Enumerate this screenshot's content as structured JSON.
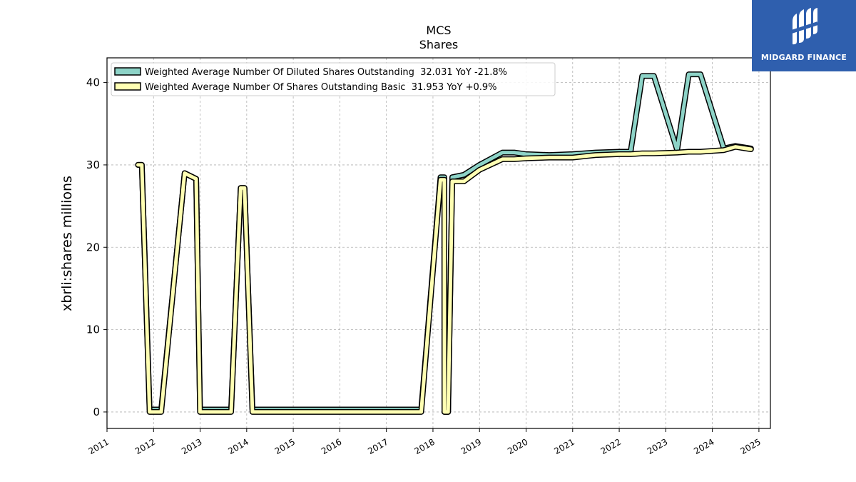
{
  "logo": {
    "text": "MIDGARD FINANCE",
    "bg_color": "#2f5fae"
  },
  "chart_data": {
    "type": "line",
    "title": "MCS",
    "subtitle": "Shares",
    "ylabel": "xbrli:shares millions",
    "xlabel": "",
    "xlim": [
      "2011-01-01",
      "2025-04-01"
    ],
    "ylim": [
      -2,
      43
    ],
    "yticks": [
      0,
      10,
      20,
      30,
      40
    ],
    "xticks": [
      "2011",
      "2012",
      "2013",
      "2014",
      "2015",
      "2016",
      "2017",
      "2018",
      "2019",
      "2020",
      "2021",
      "2022",
      "2023",
      "2024",
      "2025"
    ],
    "grid": true,
    "legend_position": "top-left",
    "series": [
      {
        "name": "Weighted Average Number Of Diluted Shares Outstanding  32.031 YoY -21.8%",
        "color": "#8dd3c7",
        "points": [
          [
            "2011-09-01",
            30.0
          ],
          [
            "2011-10-01",
            30.0
          ],
          [
            "2011-12-01",
            0.3
          ],
          [
            "2012-03-01",
            0.3
          ],
          [
            "2012-09-01",
            29.0
          ],
          [
            "2012-12-01",
            28.3
          ],
          [
            "2012-12-31",
            0.3
          ],
          [
            "2013-09-01",
            0.3
          ],
          [
            "2013-11-15",
            27.2
          ],
          [
            "2013-12-15",
            27.2
          ],
          [
            "2014-02-15",
            0.3
          ],
          [
            "2017-10-01",
            0.3
          ],
          [
            "2018-03-01",
            28.5
          ],
          [
            "2018-03-31",
            28.5
          ],
          [
            "2018-04-01",
            0.0
          ],
          [
            "2018-04-30",
            0.0
          ],
          [
            "2018-06-01",
            28.5
          ],
          [
            "2018-09-01",
            28.8
          ],
          [
            "2019-01-01",
            30.0
          ],
          [
            "2019-06-30",
            31.5
          ],
          [
            "2019-09-30",
            31.5
          ],
          [
            "2019-12-31",
            31.3
          ],
          [
            "2020-06-30",
            31.2
          ],
          [
            "2020-12-31",
            31.3
          ],
          [
            "2021-06-30",
            31.5
          ],
          [
            "2021-12-31",
            31.6
          ],
          [
            "2022-03-31",
            31.6
          ],
          [
            "2022-06-30",
            40.8
          ],
          [
            "2022-09-30",
            40.8
          ],
          [
            "2023-03-31",
            31.8
          ],
          [
            "2023-06-30",
            41.0
          ],
          [
            "2023-09-30",
            41.0
          ],
          [
            "2024-03-31",
            32.0
          ],
          [
            "2024-06-30",
            32.3
          ],
          [
            "2024-10-31",
            32.0
          ]
        ]
      },
      {
        "name": "Weighted Average Number Of Shares Outstanding Basic  31.953 YoY +0.9%",
        "color": "#ffffb3",
        "points": [
          [
            "2011-09-01",
            30.0
          ],
          [
            "2011-10-01",
            30.0
          ],
          [
            "2011-12-01",
            0.0
          ],
          [
            "2012-03-01",
            0.0
          ],
          [
            "2012-09-01",
            29.0
          ],
          [
            "2012-12-01",
            28.3
          ],
          [
            "2012-12-31",
            0.0
          ],
          [
            "2013-09-01",
            0.0
          ],
          [
            "2013-11-15",
            27.2
          ],
          [
            "2013-12-15",
            27.2
          ],
          [
            "2014-02-15",
            0.0
          ],
          [
            "2017-10-01",
            0.0
          ],
          [
            "2018-03-01",
            28.2
          ],
          [
            "2018-03-31",
            28.2
          ],
          [
            "2018-04-01",
            0.0
          ],
          [
            "2018-04-30",
            0.0
          ],
          [
            "2018-06-01",
            28.0
          ],
          [
            "2018-09-01",
            28.0
          ],
          [
            "2019-01-01",
            29.4
          ],
          [
            "2019-06-30",
            30.7
          ],
          [
            "2019-09-30",
            30.7
          ],
          [
            "2019-12-31",
            30.8
          ],
          [
            "2020-06-30",
            30.9
          ],
          [
            "2020-12-31",
            30.9
          ],
          [
            "2021-06-30",
            31.2
          ],
          [
            "2021-12-31",
            31.3
          ],
          [
            "2022-03-31",
            31.3
          ],
          [
            "2022-06-30",
            31.4
          ],
          [
            "2022-09-30",
            31.4
          ],
          [
            "2023-03-31",
            31.5
          ],
          [
            "2023-06-30",
            31.6
          ],
          [
            "2023-09-30",
            31.6
          ],
          [
            "2024-03-31",
            31.8
          ],
          [
            "2024-06-30",
            32.2
          ],
          [
            "2024-10-31",
            31.9
          ]
        ]
      }
    ]
  }
}
